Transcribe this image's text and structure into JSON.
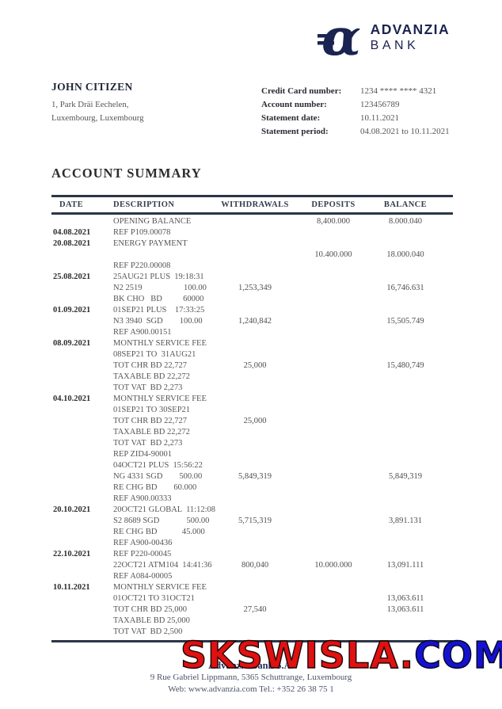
{
  "logo": {
    "brand_top": "ADVANZIA",
    "brand_bottom": "BANK"
  },
  "recipient": {
    "name": "JOHN CITIZEN",
    "address_line1": "1, Park Dräi Eechelen,",
    "address_line2": "Luxembourg, Luxembourg"
  },
  "statement_info": {
    "rows": [
      {
        "label": "Credit Card number:",
        "value": "1234 **** **** 4321"
      },
      {
        "label": "Account number:",
        "value": "123456789"
      },
      {
        "label": "Statement date:",
        "value": "10.11.2021"
      },
      {
        "label": "Statement period:",
        "value": "04.08.2021 to 10.11.2021"
      }
    ]
  },
  "summary": {
    "title": "ACCOUNT SUMMARY",
    "columns": [
      "DATE",
      "DESCRIPTION",
      "WITHDRAWALS",
      "DEPOSITS",
      "BALANCE"
    ],
    "transactions": [
      {
        "lines": [
          {
            "desc": "OPENING BALANCE",
            "d": "8,400.000",
            "b": "8.000.040"
          },
          {
            "date": "04.08.2021",
            "desc": "REF P109.00078"
          }
        ]
      },
      {
        "lines": [
          {
            "date": "20.08.2021",
            "desc": "ENERGY PAYMENT"
          },
          {
            "desc": "",
            "d": "10.400.000",
            "b": "18.000.040"
          },
          {
            "desc": "REF P220.00008"
          }
        ]
      },
      {
        "lines": [
          {
            "date": "25.08.2021",
            "desc": "25AUG21 PLUS  19:18:31"
          },
          {
            "desc": "N2 2519                    100.00",
            "w": "1,253,349",
            "b": "16,746.631"
          },
          {
            "desc": "BK CHO   BD          60000"
          }
        ]
      },
      {
        "lines": [
          {
            "date": "01.09.2021",
            "desc": "01SEP21 PLUS    17:33:25"
          },
          {
            "desc": "N3 3940  SGD        100.00",
            "w": "1,240,842",
            "b": "15,505.749"
          },
          {
            "desc": "REF A900.00151"
          }
        ]
      },
      {
        "lines": [
          {
            "date": "08.09.2021",
            "desc": "MONTHLY SERVICE FEE"
          },
          {
            "desc": "08SEP21 TO  31AUG21"
          },
          {
            "desc": "TOT CHR BD 22,727",
            "w": "25,000",
            "b": "15,480,749"
          },
          {
            "desc": "TAXABLE BD 22,272"
          },
          {
            "desc": "TOT VAT  BD 2,273"
          }
        ]
      },
      {
        "lines": [
          {
            "date": "04.10.2021",
            "desc": "MONTHLY SERVICE FEE"
          },
          {
            "desc": "01SEP21 TO 30SEP21"
          },
          {
            "desc": "TOT CHR BD 22,727",
            "w": "25,000"
          },
          {
            "desc": "TAXABLE BD 22,272"
          },
          {
            "desc": "TOT VAT  BD 2,273"
          },
          {
            "desc": "REP ZID4-90001"
          }
        ]
      },
      {
        "lines": [
          {
            "desc": "04OCT21 PLUS  15:56:22"
          },
          {
            "desc": "NG 4331 SGD        500.00",
            "w": "5,849,319",
            "b": "5,849,319"
          },
          {
            "desc": "RE CHG BD        60.000"
          },
          {
            "desc": "REF A900.00333"
          }
        ]
      },
      {
        "lines": [
          {
            "date": "20.10.2021",
            "desc": "20OCT21 GLOBAL  11:12:08"
          },
          {
            "desc": "S2 8689 SGD             500.00",
            "w": "5,715,319",
            "b": "3,891.131"
          },
          {
            "desc": "RE CHG BD            45.000"
          },
          {
            "desc": "REF A900-00436"
          }
        ]
      },
      {
        "lines": [
          {
            "date": "22.10.2021",
            "desc": "REF P220-00045"
          },
          {
            "desc": "22OCT21 ATM104  14:41:36",
            "w": "800,040",
            "d": "10.000.000",
            "b": "13,091.111"
          },
          {
            "desc": "REF A084-00005"
          }
        ]
      },
      {
        "lines": [
          {
            "date": "10.11.2021",
            "desc": "MONTHLY SERVICE FEE"
          },
          {
            "desc": "01OCT21 TO 31OCT21",
            "b": "13,063.611"
          },
          {
            "desc": "TOT CHR BD 25,000",
            "w": "27,540",
            "b": "13,063.611"
          },
          {
            "desc": "TAXABLE BD 25,000"
          },
          {
            "desc": "TOT VAT  BD 2,500"
          }
        ]
      }
    ]
  },
  "watermark": {
    "red_text": "SKSWISLA.",
    "blue_text": "COM"
  },
  "footer": {
    "bank_name": "Advanzia Bank S.A.",
    "address": "9 Rue Gabriel Lippmann, 5365 Schuttrange, Luxembourg",
    "contact": "Web: www.advanzia.com Tel.: +352 26 38 75 1"
  },
  "colors": {
    "navy": "#1b2350",
    "rule": "#2b3547",
    "text_dark": "#2e2e2e",
    "text_gray": "#555555",
    "wm_red": "#df1111",
    "wm_blue": "#1512cf",
    "footer_gray": "#4d5366"
  }
}
